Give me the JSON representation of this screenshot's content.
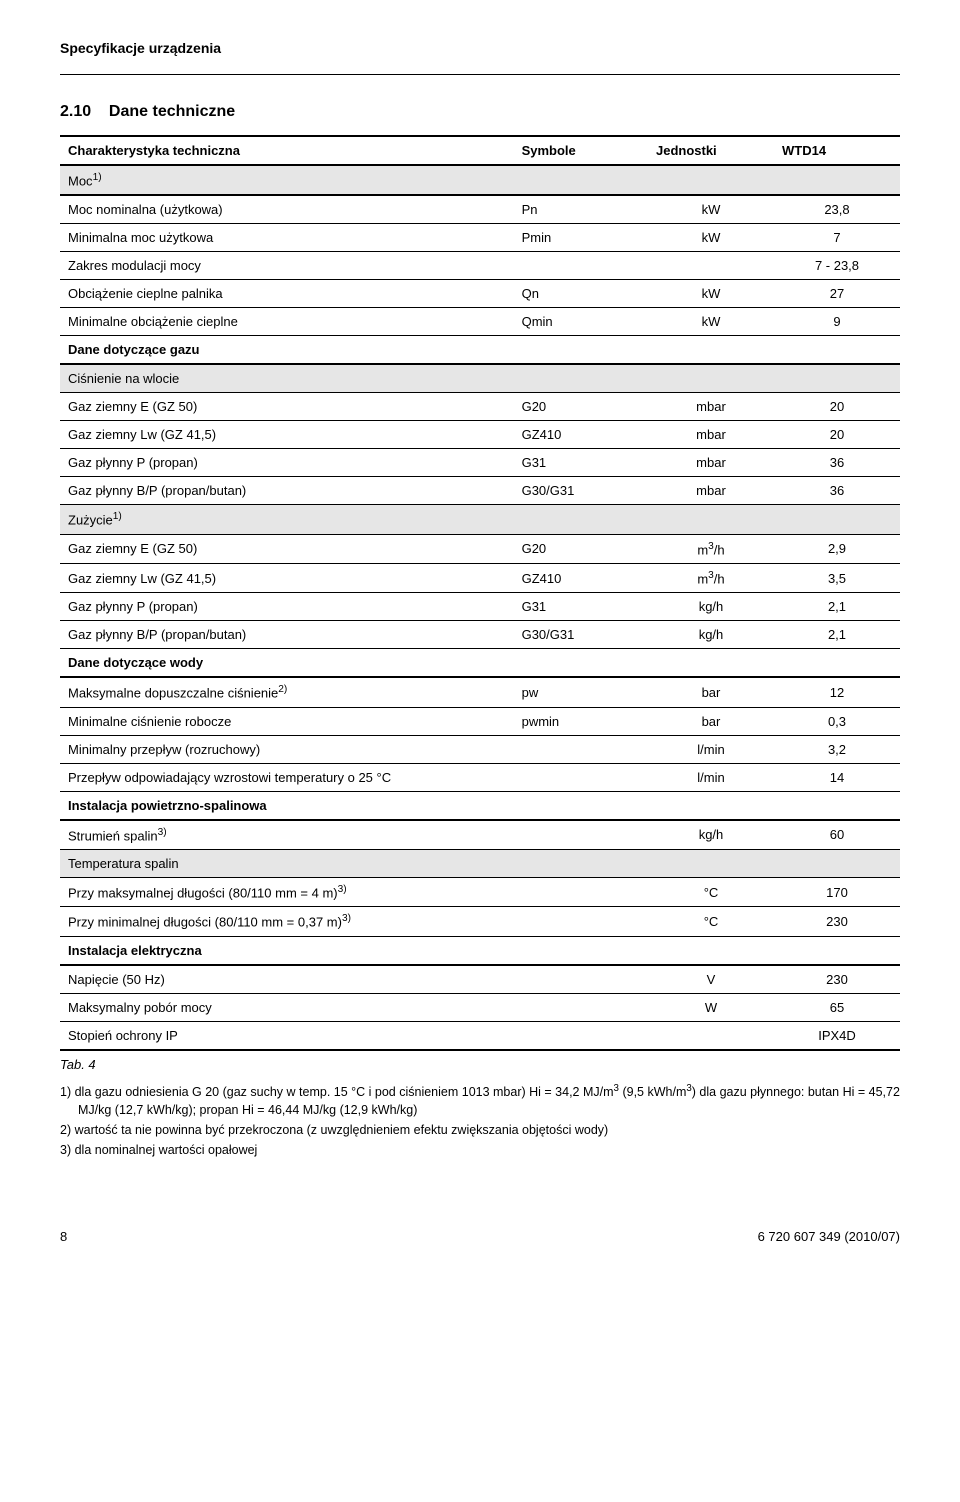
{
  "header": "Specyfikacje urządzenia",
  "section_number": "2.10",
  "section_title": "Dane techniczne",
  "table": {
    "head": [
      "Charakterystyka techniczna",
      "Symbole",
      "Jednostki",
      "WTD14"
    ],
    "rows": [
      {
        "p": "Moc<sup>1)</sup>",
        "s": "",
        "u": "",
        "v": "",
        "shade": true,
        "spanall": true,
        "thick": true
      },
      {
        "p": "Moc nominalna (użytkowa)",
        "s": "Pn",
        "u": "kW",
        "v": "23,8"
      },
      {
        "p": "Minimalna moc użytkowa",
        "s": "Pmin",
        "u": "kW",
        "v": "7"
      },
      {
        "p": "Zakres modulacji mocy",
        "s": "",
        "u": "",
        "v": "7 - 23,8"
      },
      {
        "p": "Obciążenie cieplne palnika",
        "s": "Qn",
        "u": "kW",
        "v": "27"
      },
      {
        "p": "Minimalne obciążenie cieplne",
        "s": "Qmin",
        "u": "kW",
        "v": "9"
      },
      {
        "p": "Dane dotyczące gazu",
        "s": "",
        "u": "",
        "v": "",
        "spanall": true,
        "sectionhead": true,
        "thick": true
      },
      {
        "p": "Ciśnienie na wlocie",
        "s": "",
        "u": "",
        "v": "",
        "shade": true,
        "spanall": true
      },
      {
        "p": "Gaz ziemny E (GZ 50)",
        "s": "G20",
        "u": "mbar",
        "v": "20"
      },
      {
        "p": "Gaz ziemny Lw (GZ 41,5)",
        "s": "GZ410",
        "u": "mbar",
        "v": "20"
      },
      {
        "p": "Gaz płynny P (propan)",
        "s": "G31",
        "u": "mbar",
        "v": "36"
      },
      {
        "p": "Gaz płynny B/P (propan/butan)",
        "s": "G30/G31",
        "u": "mbar",
        "v": "36"
      },
      {
        "p": "Zużycie<sup>1)</sup>",
        "s": "",
        "u": "",
        "v": "",
        "shade": true,
        "spanall": true
      },
      {
        "p": "Gaz ziemny E (GZ 50)",
        "s": "G20",
        "u": "m<sup>3</sup>/h",
        "v": "2,9"
      },
      {
        "p": "Gaz ziemny Lw (GZ 41,5)",
        "s": "GZ410",
        "u": "m<sup>3</sup>/h",
        "v": "3,5"
      },
      {
        "p": "Gaz płynny P (propan)",
        "s": "G31",
        "u": "kg/h",
        "v": "2,1"
      },
      {
        "p": "Gaz płynny B/P (propan/butan)",
        "s": "G30/G31",
        "u": "kg/h",
        "v": "2,1"
      },
      {
        "p": "Dane dotyczące wody",
        "s": "",
        "u": "",
        "v": "",
        "spanall": true,
        "sectionhead": true,
        "thick": true
      },
      {
        "p": "Maksymalne dopuszczalne ciśnienie<sup>2)</sup>",
        "s": "pw",
        "u": "bar",
        "v": "12"
      },
      {
        "p": "Minimalne ciśnienie robocze",
        "s": "pwmin",
        "u": "bar",
        "v": "0,3"
      },
      {
        "p": "Minimalny przepływ (rozruchowy)",
        "s": "",
        "u": "l/min",
        "v": "3,2"
      },
      {
        "p": "Przepływ odpowiadający wzrostowi temperatury o 25 °C",
        "s": "",
        "u": "l/min",
        "v": "14"
      },
      {
        "p": "Instalacja powietrzno-spalinowa",
        "s": "",
        "u": "",
        "v": "",
        "spanall": true,
        "sectionhead": true,
        "thick": true
      },
      {
        "p": "Strumień spalin<sup>3)</sup>",
        "s": "",
        "u": "kg/h",
        "v": "60"
      },
      {
        "p": "Temperatura spalin",
        "s": "",
        "u": "",
        "v": "",
        "shade": true,
        "spanall": true
      },
      {
        "p": "Przy maksymalnej długości  (80/110 mm = 4 m)<sup>3)</sup>",
        "s": "",
        "u": "°C",
        "v": "170"
      },
      {
        "p": "Przy minimalnej długości (80/110 mm = 0,37 m)<sup>3)</sup>",
        "s": "",
        "u": "°C",
        "v": "230"
      },
      {
        "p": "Instalacja elektryczna",
        "s": "",
        "u": "",
        "v": "",
        "spanall": true,
        "sectionhead": true,
        "thick": true
      },
      {
        "p": "Napięcie (50 Hz)",
        "s": "",
        "u": "V",
        "v": "230"
      },
      {
        "p": "Maksymalny pobór mocy",
        "s": "",
        "u": "W",
        "v": "65"
      },
      {
        "p": "Stopień ochrony      IP",
        "s": "",
        "u": "",
        "v": "IPX4D",
        "thick": true
      }
    ]
  },
  "caption": "Tab. 4",
  "footnotes": [
    "1) dla gazu odniesienia G 20 (gaz suchy w temp. 15 °C i pod ciśnieniem 1013 mbar) Hi = 34,2 MJ/m<sup>3</sup>  (9,5 kWh/m<sup>3</sup>) dla gazu płynnego: butan Hi = 45,72 MJ/kg (12,7 kWh/kg); propan Hi = 46,44 MJ/kg (12,9 kWh/kg)",
    "2) wartość ta nie powinna być przekroczona (z uwzględnieniem efektu zwiększania objętości wody)",
    "3) dla nominalnej wartości opałowej"
  ],
  "footer": {
    "page": "8",
    "docid": "6 720 607 349 (2010/07)"
  }
}
